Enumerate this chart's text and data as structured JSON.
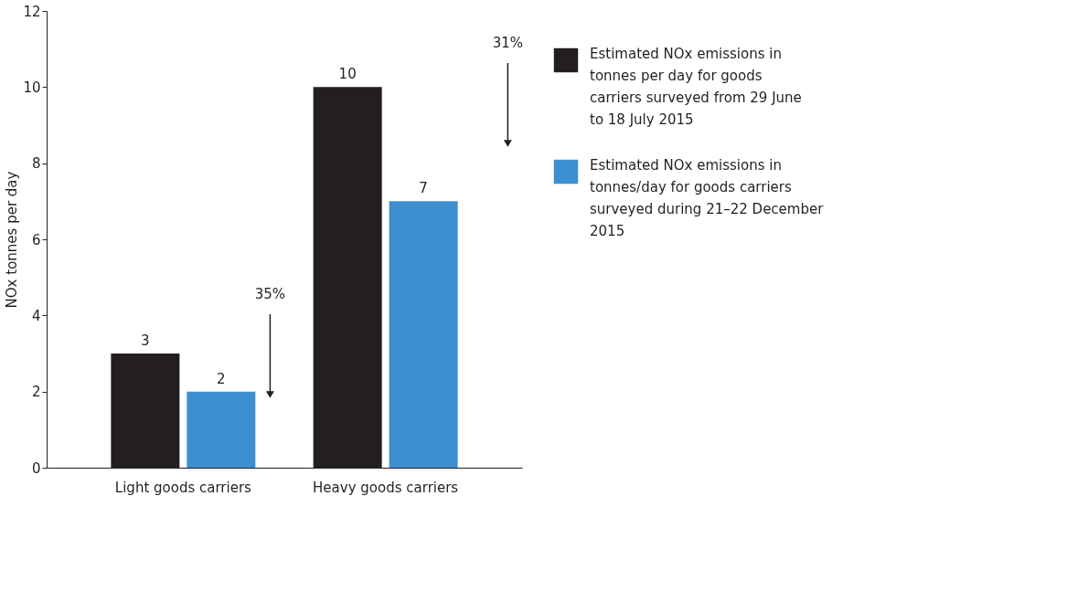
{
  "chart_data": {
    "type": "bar",
    "ylabel": "NOx tonnes per day",
    "categories": [
      "Light goods carriers",
      "Heavy goods carriers"
    ],
    "series": [
      {
        "name": "Estimated NOx emissions in tonnes per day for goods carriers surveyed from 29 June to 18 July 2015",
        "color": "#231f20",
        "values": [
          3,
          10
        ]
      },
      {
        "name": "Estimated NOx emissions in tonnes/day for goods carriers surveyed during 21–22 December 2015",
        "color": "#3d8fd1",
        "values": [
          2,
          7
        ]
      }
    ],
    "ylim": [
      0,
      12
    ],
    "yticks": [
      0,
      2,
      4,
      6,
      8,
      10,
      12
    ],
    "data_labels": true,
    "grid": false,
    "legend": "right",
    "annotations": [
      "35%",
      "31%"
    ]
  }
}
